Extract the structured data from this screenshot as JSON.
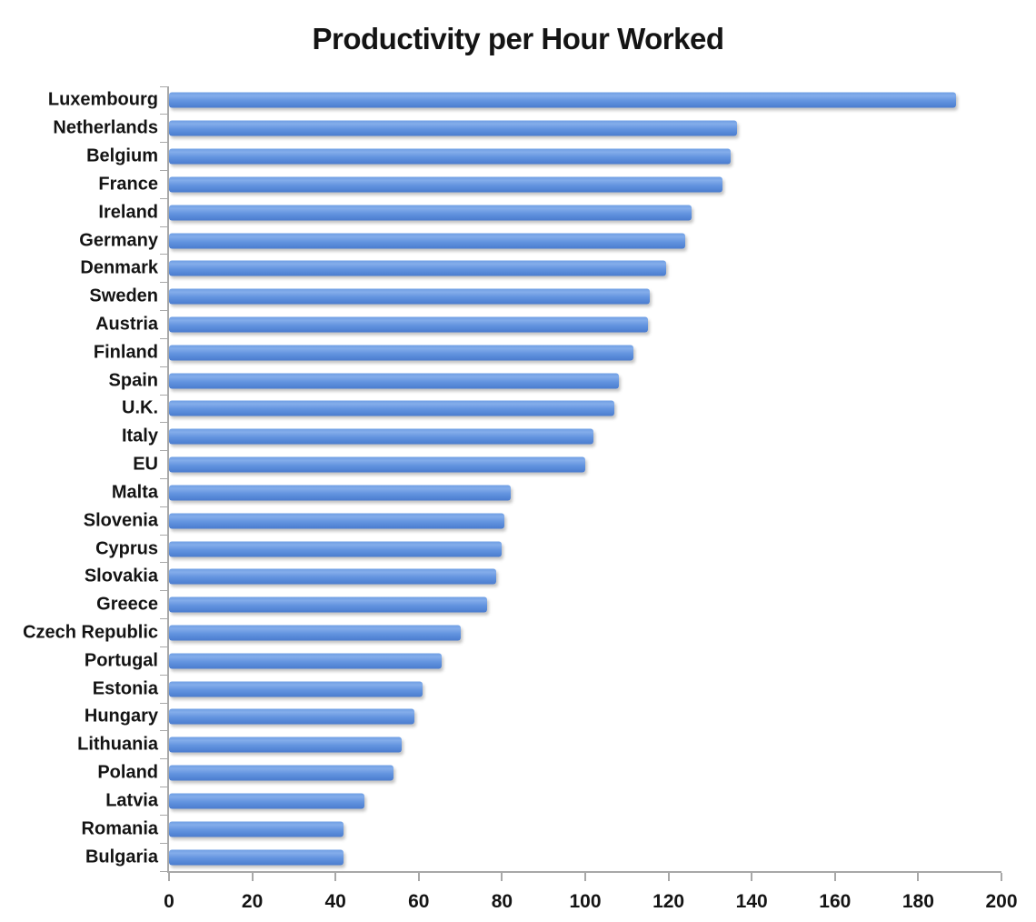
{
  "chart_data": {
    "type": "bar",
    "orientation": "horizontal",
    "title": "Productivity per Hour Worked",
    "xlabel": "",
    "ylabel": "",
    "categories": [
      "Luxembourg",
      "Netherlands",
      "Belgium",
      "France",
      "Ireland",
      "Germany",
      "Denmark",
      "Sweden",
      "Austria",
      "Finland",
      "Spain",
      "U.K.",
      "Italy",
      "EU",
      "Malta",
      "Slovenia",
      "Cyprus",
      "Slovakia",
      "Greece",
      "Czech Republic",
      "Portugal",
      "Estonia",
      "Hungary",
      "Lithuania",
      "Poland",
      "Latvia",
      "Romania",
      "Bulgaria"
    ],
    "values": [
      189,
      136.5,
      135,
      133,
      125.5,
      124,
      119.5,
      115.5,
      115,
      111.5,
      108,
      107,
      102,
      100,
      82,
      80.5,
      80,
      78.5,
      76.5,
      70,
      65.5,
      61,
      59,
      56,
      54,
      47,
      42,
      42
    ],
    "xlim": [
      0,
      200
    ],
    "x_ticks": [
      0,
      20,
      40,
      60,
      80,
      100,
      120,
      140,
      160,
      180,
      200
    ],
    "grid": false,
    "legend": false,
    "colors": {
      "bar_top": "#6f9fe4",
      "bar_light": "#84adea",
      "bar_mid": "#6394df",
      "bar_bottom": "#4a7ccf",
      "axis": "#a8a8a8",
      "text": "#141414",
      "background": "#ffffff"
    }
  }
}
